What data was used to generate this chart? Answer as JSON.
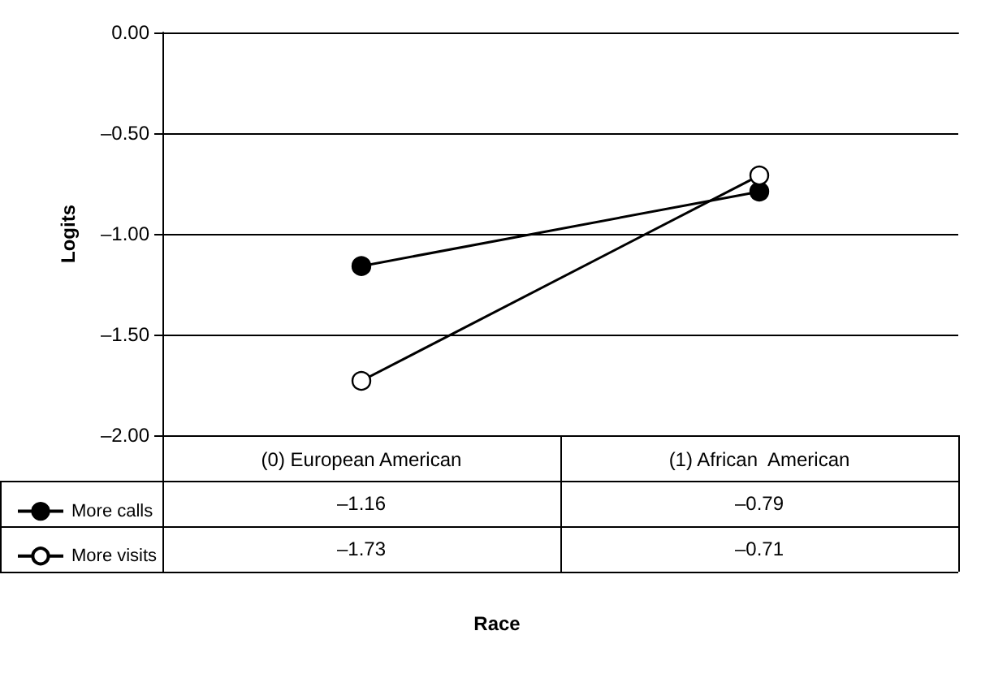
{
  "chart_data": {
    "type": "line",
    "ylabel": "Logits",
    "annotations": [
      "Race"
    ],
    "categories": [
      "(0) European American",
      "(1) African  American"
    ],
    "series": [
      {
        "name": "More calls",
        "color": "#000000",
        "values": [
          -1.16,
          -0.79
        ],
        "value_labels": [
          "–1.16",
          "–0.79"
        ]
      },
      {
        "name": "More visits",
        "color": "#000000",
        "colors": [
          "#ffffff",
          "#ffffff"
        ],
        "values": [
          -1.73,
          -0.71
        ],
        "value_labels": [
          "–1.73",
          "–0.71"
        ]
      }
    ],
    "ylim": [
      -2,
      0
    ],
    "yticks": [
      {
        "value": -2,
        "label": "–2.00"
      },
      {
        "value": -1.5,
        "label": "–1.50"
      },
      {
        "value": -1,
        "label": "–1.00"
      },
      {
        "value": -0.5,
        "label": "–0.50"
      },
      {
        "value": 0,
        "label": "0.00"
      }
    ],
    "grid": "y",
    "legend": "bottom left",
    "marker": "circle",
    "line_style": "solid"
  }
}
